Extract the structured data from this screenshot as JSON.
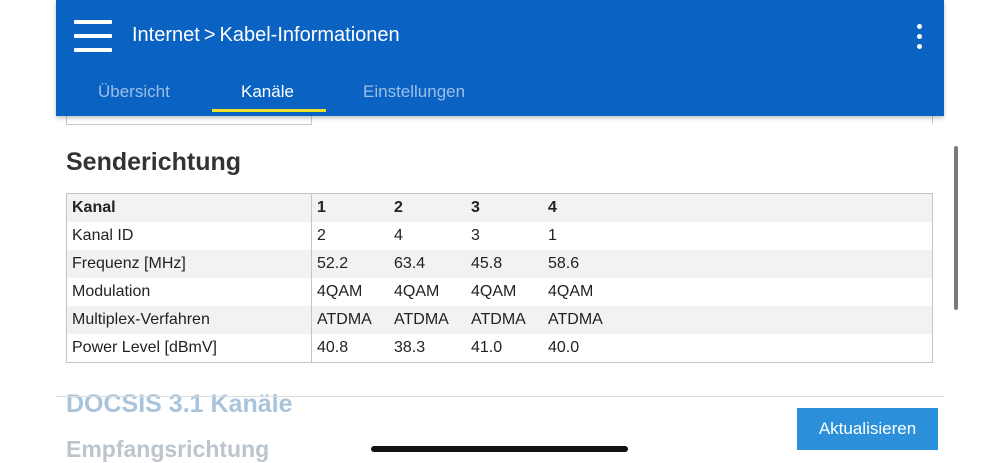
{
  "header": {
    "breadcrumb_parent": "Internet",
    "breadcrumb_separator": ">",
    "breadcrumb_current": "Kabel-Informationen",
    "menu_icon": "hamburger-menu-icon",
    "more_icon": "more-vertical-icon"
  },
  "tabs": [
    {
      "label": "Übersicht",
      "active": false
    },
    {
      "label": "Kanäle",
      "active": true
    },
    {
      "label": "Einstellungen",
      "active": false
    }
  ],
  "section": {
    "title": "Senderichtung"
  },
  "table": {
    "rows": [
      {
        "label": "Kanal",
        "values": [
          "1",
          "2",
          "3",
          "4"
        ]
      },
      {
        "label": "Kanal ID",
        "values": [
          "2",
          "4",
          "3",
          "1"
        ]
      },
      {
        "label": "Frequenz [MHz]",
        "values": [
          "52.2",
          "63.4",
          "45.8",
          "58.6"
        ]
      },
      {
        "label": "Modulation",
        "values": [
          "4QAM",
          "4QAM",
          "4QAM",
          "4QAM"
        ]
      },
      {
        "label": "Multiplex-Verfahren",
        "values": [
          "ATDMA",
          "ATDMA",
          "ATDMA",
          "ATDMA"
        ]
      },
      {
        "label": "Power Level [dBmV]",
        "values": [
          "40.8",
          "38.3",
          "41.0",
          "40.0"
        ]
      }
    ]
  },
  "next_section": {
    "title": "DOCSIS 3.1 Kanäle",
    "subtitle": "Empfangsrichtung"
  },
  "footer": {
    "refresh_label": "Aktualisieren"
  },
  "colors": {
    "header_bg": "#0a63c3",
    "tab_indicator": "#f0e02a",
    "button_bg": "#2b8fd9"
  }
}
